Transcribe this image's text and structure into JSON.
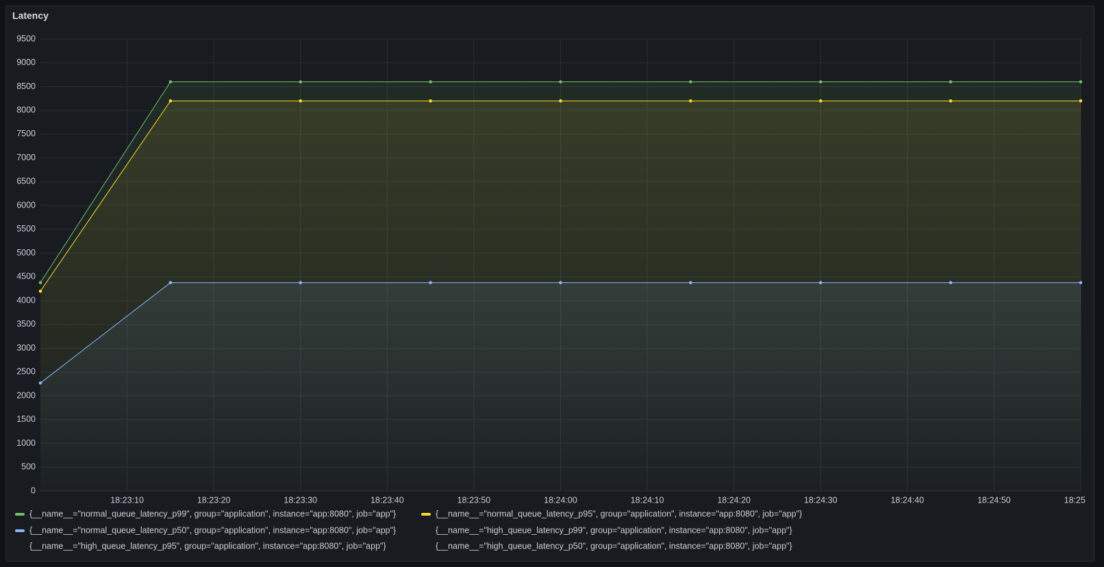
{
  "chart_data": {
    "type": "line",
    "title": "Latency",
    "x": [
      "18:23:00",
      "18:23:15",
      "18:23:30",
      "18:23:45",
      "18:24:00",
      "18:24:15",
      "18:24:30",
      "18:24:45",
      "18:25:00"
    ],
    "series": [
      {
        "name": "{__name__=\"normal_queue_latency_p99\", group=\"application\", instance=\"app:8080\", job=\"app\"}",
        "color": "#73bf69",
        "values": [
          4380,
          8600,
          8600,
          8600,
          8600,
          8600,
          8600,
          8600,
          8600
        ]
      },
      {
        "name": "{__name__=\"normal_queue_latency_p95\", group=\"application\", instance=\"app:8080\", job=\"app\"}",
        "color": "#fade2a",
        "values": [
          4200,
          8200,
          8200,
          8200,
          8200,
          8200,
          8200,
          8200,
          8200
        ]
      },
      {
        "name": "{__name__=\"normal_queue_latency_p50\", group=\"application\", instance=\"app:8080\", job=\"app\"}",
        "color": "#8ab8ff",
        "values": [
          2270,
          4380,
          4380,
          4380,
          4380,
          4380,
          4380,
          4380,
          4380
        ]
      },
      {
        "name": "{__name__=\"high_queue_latency_p99\", group=\"application\", instance=\"app:8080\", job=\"app\"}",
        "values": [
          null,
          null,
          null,
          null,
          null,
          null,
          null,
          null,
          null
        ]
      },
      {
        "name": "{__name__=\"high_queue_latency_p95\", group=\"application\", instance=\"app:8080\", job=\"app\"}",
        "values": [
          null,
          null,
          null,
          null,
          null,
          null,
          null,
          null,
          null
        ]
      },
      {
        "name": "{__name__=\"high_queue_latency_p50\", group=\"application\", instance=\"app:8080\", job=\"app\"}",
        "values": [
          null,
          null,
          null,
          null,
          null,
          null,
          null,
          null,
          null
        ]
      }
    ],
    "xlim": [
      "18:23:00",
      "18:25:00"
    ],
    "xticks": [
      "18:23:10",
      "18:23:20",
      "18:23:30",
      "18:23:40",
      "18:23:50",
      "18:24:00",
      "18:24:10",
      "18:24:20",
      "18:24:30",
      "18:24:40",
      "18:24:50",
      "18:25:00"
    ],
    "ylim": [
      0,
      9500
    ],
    "yticks": [
      0,
      500,
      1000,
      1500,
      2000,
      2500,
      3000,
      3500,
      4000,
      4500,
      5000,
      5500,
      6000,
      6500,
      7000,
      7500,
      8000,
      8500,
      9000,
      9500
    ],
    "grid": true
  }
}
